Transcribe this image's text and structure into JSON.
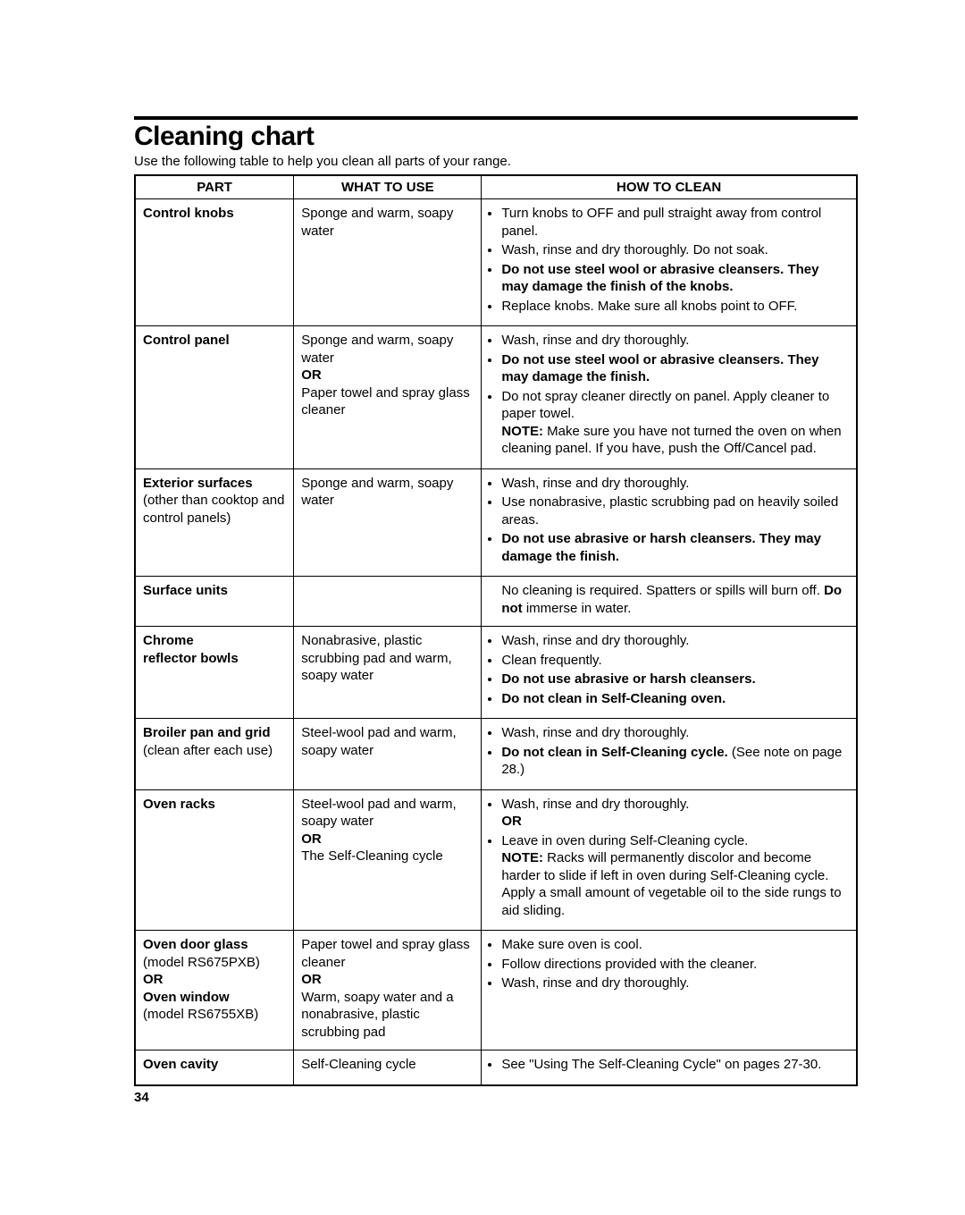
{
  "title": "Cleaning chart",
  "intro": "Use the following table to help you clean all parts of your range.",
  "headers": {
    "part": "PART",
    "use": "WHAT TO USE",
    "how": "HOW TO CLEAN"
  },
  "rows": [
    {
      "part": "<span class='b'>Control knobs</span>",
      "use": "Sponge and warm, soapy water",
      "how": "<ul class='bullets'><li>Turn knobs to OFF and pull straight away from control panel.</li><li>Wash, rinse and dry thoroughly. Do not soak.</li><li><span class='b'>Do not use steel wool or abrasive cleansers. They may damage the finish of the knobs.</span></li><li>Replace knobs. Make sure all knobs point to OFF.</li></ul>"
    },
    {
      "part": "<span class='b'>Control panel</span>",
      "use": "Sponge and warm, soapy water<br><span class='b'>OR</span><br>Paper towel and spray glass cleaner",
      "how": "<ul class='bullets'><li>Wash, rinse and dry thoroughly.</li><li><span class='b'>Do not use steel wool or abrasive cleansers. They may damage the finish.</span></li><li>Do not spray cleaner directly on panel. Apply cleaner to paper towel.<br><span class='b'>NOTE:</span> Make sure you have not turned the oven on when cleaning panel. If you have, push the Off/Cancel pad.</li></ul>"
    },
    {
      "part": "<span class='b'>Exterior surfaces</span><br>(other than cooktop and control panels)",
      "use": "Sponge and warm, soapy water",
      "how": "<ul class='bullets'><li>Wash, rinse and dry thoroughly.</li><li>Use nonabrasive, plastic scrubbing pad on heavily soiled areas.</li><li><span class='b'>Do not use abrasive or harsh cleansers. They may damage the finish.</span></li></ul>"
    },
    {
      "part": "<span class='b'>Surface units</span>",
      "use": "",
      "how": "<div style='padding-left:14px;'>No cleaning is required. Spatters or spills will burn off. <span class='b'>Do not</span> immerse in water.</div>"
    },
    {
      "part": "<span class='b'>Chrome<br>reflector bowls</span>",
      "use": "Nonabrasive, plastic scrubbing pad and warm, soapy water",
      "how": "<ul class='bullets'><li>Wash, rinse and dry thoroughly.</li><li>Clean frequently.</li><li><span class='b'>Do not use abrasive or harsh cleansers.</span></li><li><span class='b'>Do not clean in Self-Cleaning oven.</span></li></ul>"
    },
    {
      "part": "<span class='b'>Broiler pan and grid</span><br>(clean after each use)",
      "use": "Steel-wool pad and warm, soapy water",
      "how": "<ul class='bullets'><li>Wash, rinse and dry thoroughly.</li><li><span class='b'>Do not clean in Self-Cleaning cycle.</span> (See note on page 28.)</li></ul>"
    },
    {
      "part": "<span class='b'>Oven racks</span>",
      "use": "Steel-wool pad and warm, soapy water<br><span class='b'>OR</span><br>The Self-Cleaning cycle",
      "how": "<ul class='bullets'><li>Wash, rinse and dry thoroughly.<br><span class='b'>OR</span></li><li>Leave in oven during Self-Cleaning cycle.<br><span class='b'>NOTE:</span> Racks will permanently discolor and become harder to slide if left in oven during Self-Cleaning cycle. Apply a small amount of vegetable oil to the side rungs to aid sliding.</li></ul>"
    },
    {
      "part": "<span class='b'>Oven door glass</span><br>(model RS675PXB)<br><span class='b'>OR</span><br><span class='b'>Oven window</span><br>(model RS6755XB)",
      "use": "Paper towel and spray glass cleaner<br><span class='b'>OR</span><br>Warm, soapy water and a nonabrasive, plastic scrubbing pad",
      "how": "<ul class='bullets'><li>Make sure oven is cool.</li><li>Follow directions provided with the cleaner.</li><li>Wash, rinse and dry thoroughly.</li></ul>"
    },
    {
      "part": "<span class='b'>Oven cavity</span>",
      "use": "Self-Cleaning cycle",
      "how": "<ul class='bullets'><li>See \"Using The Self-Cleaning Cycle\" on pages 27-30.</li></ul>"
    }
  ],
  "page_number": "34"
}
